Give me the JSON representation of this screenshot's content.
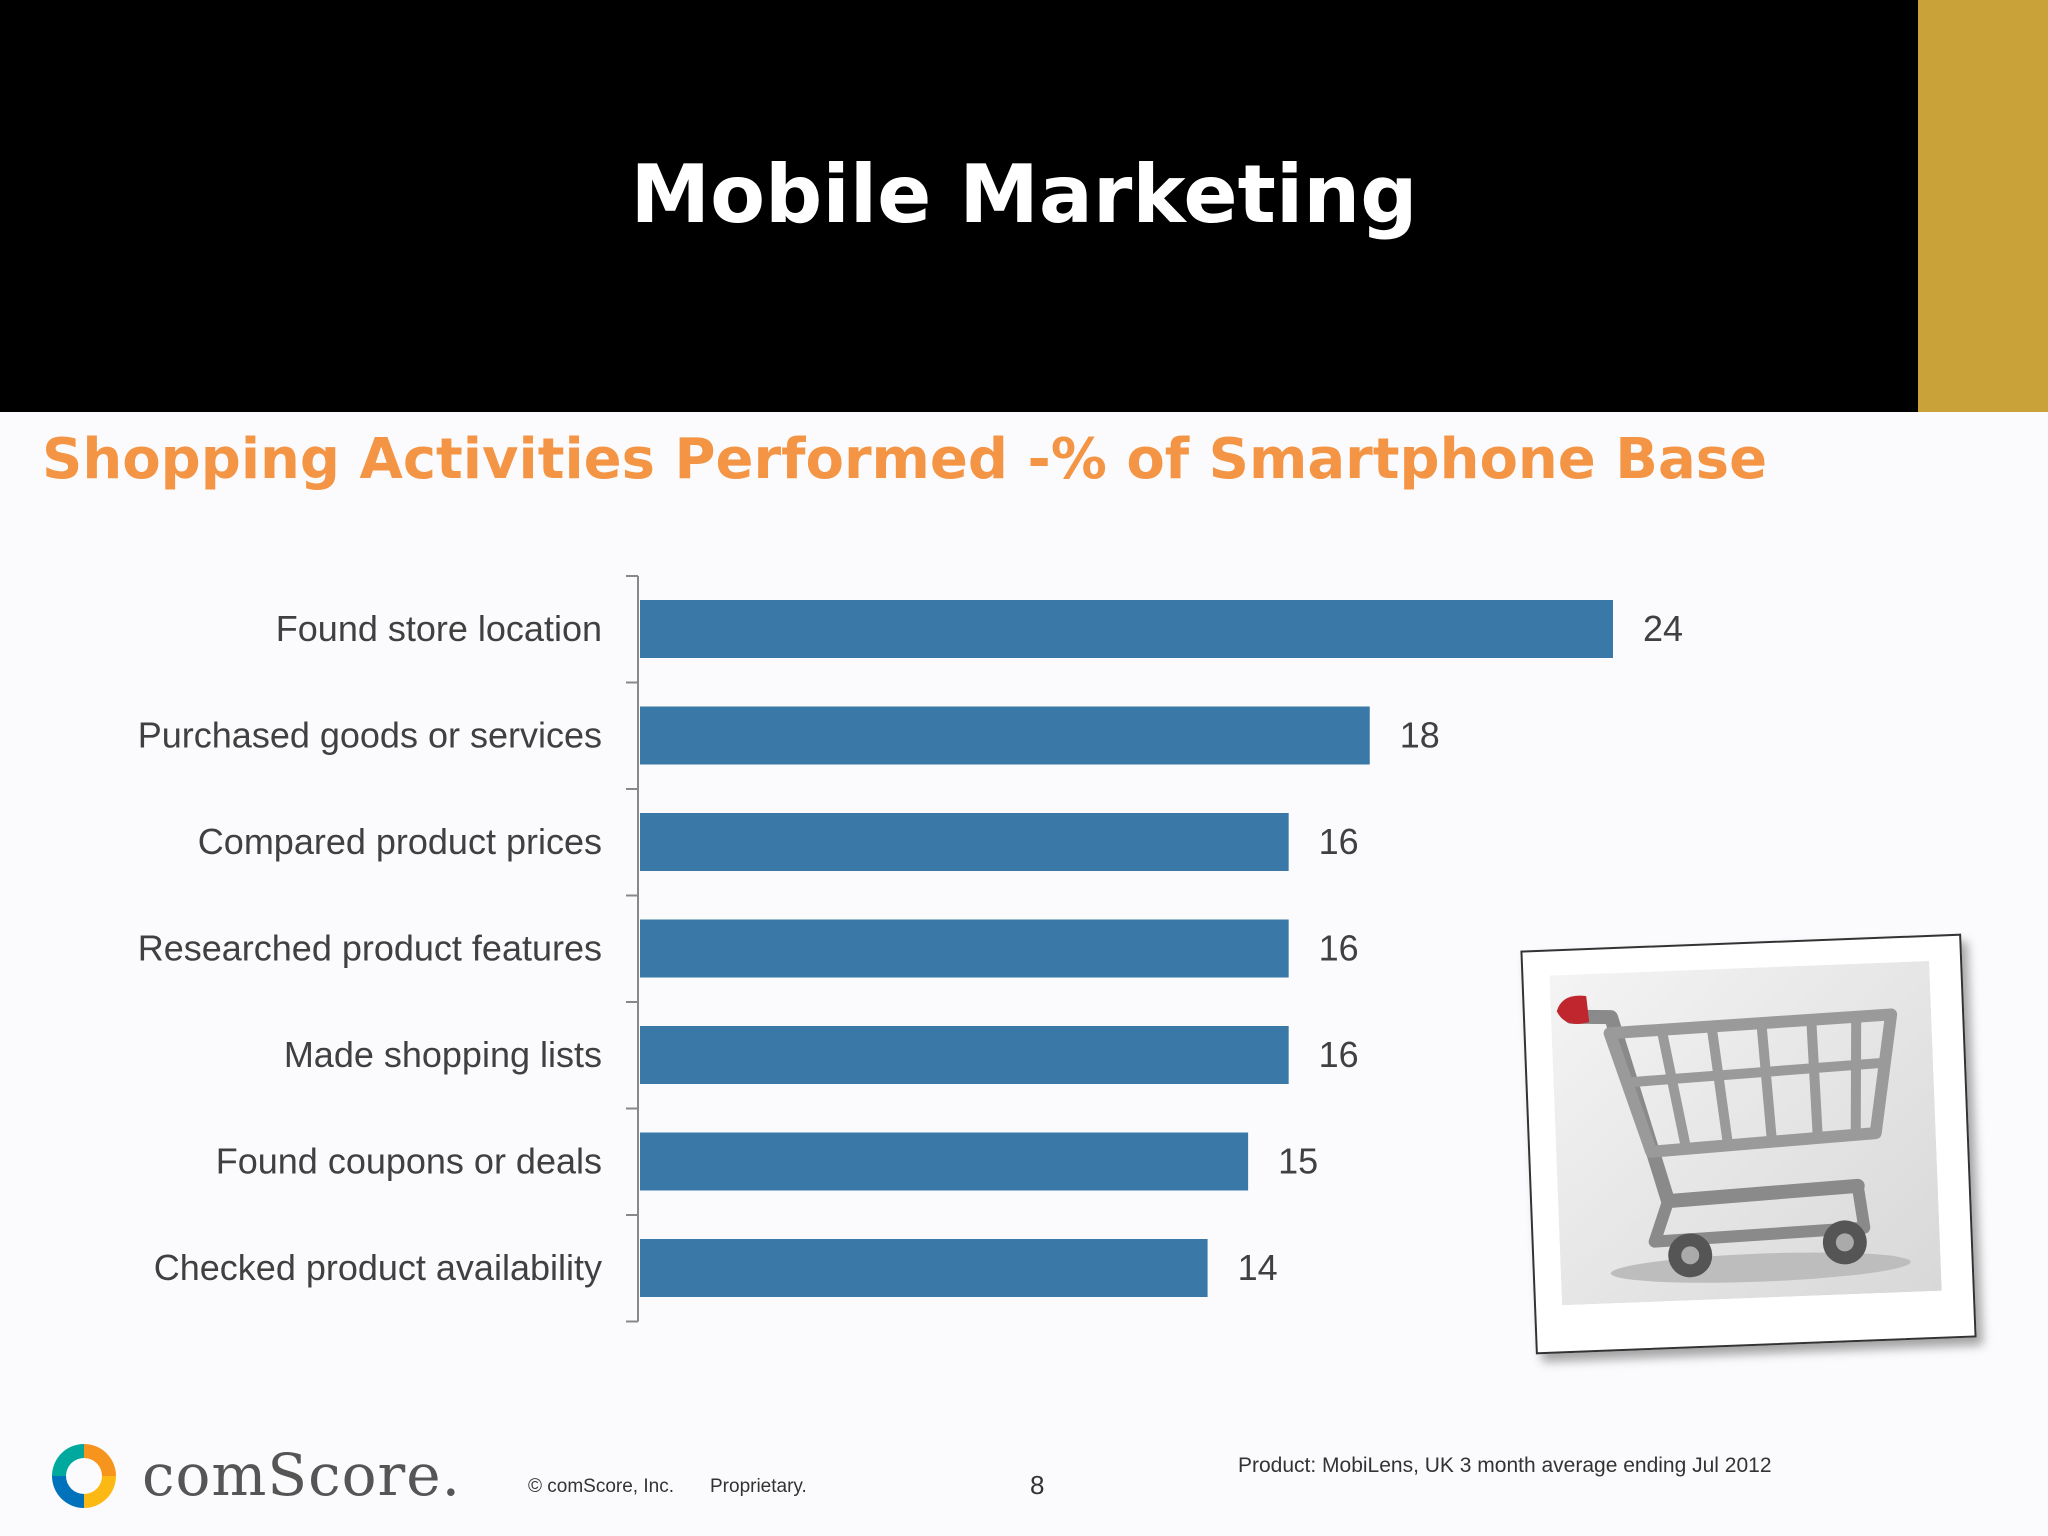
{
  "slide": {
    "title": "Mobile Marketing",
    "chart_title": "Shopping Activities Performed -% of Smartphone Base",
    "footer": {
      "brand": "comScore.",
      "copyright": "© comScore, Inc.",
      "proprietary": "Proprietary.",
      "page_number": "8",
      "source": "Product: MobiLens, UK 3 month average ending  Jul 2012"
    },
    "colors": {
      "header": "#000000",
      "accent_gold": "#C9A23A",
      "chart_title": "#F39545",
      "bar": "#3A78A8"
    },
    "icons": {
      "photo": "shopping-cart-icon",
      "logo": "comscore-logo-icon"
    }
  },
  "chart_data": {
    "type": "bar",
    "orientation": "horizontal",
    "title": "Shopping Activities Performed -% of Smartphone Base",
    "categories": [
      "Found store location",
      "Purchased goods or services",
      "Compared product prices",
      "Researched product features",
      "Made shopping lists",
      "Found coupons or deals",
      "Checked product availability"
    ],
    "values": [
      24,
      18,
      16,
      16,
      16,
      15,
      14
    ],
    "xlim": [
      0,
      26
    ],
    "data_labels": true,
    "grid": false,
    "legend": "none"
  }
}
